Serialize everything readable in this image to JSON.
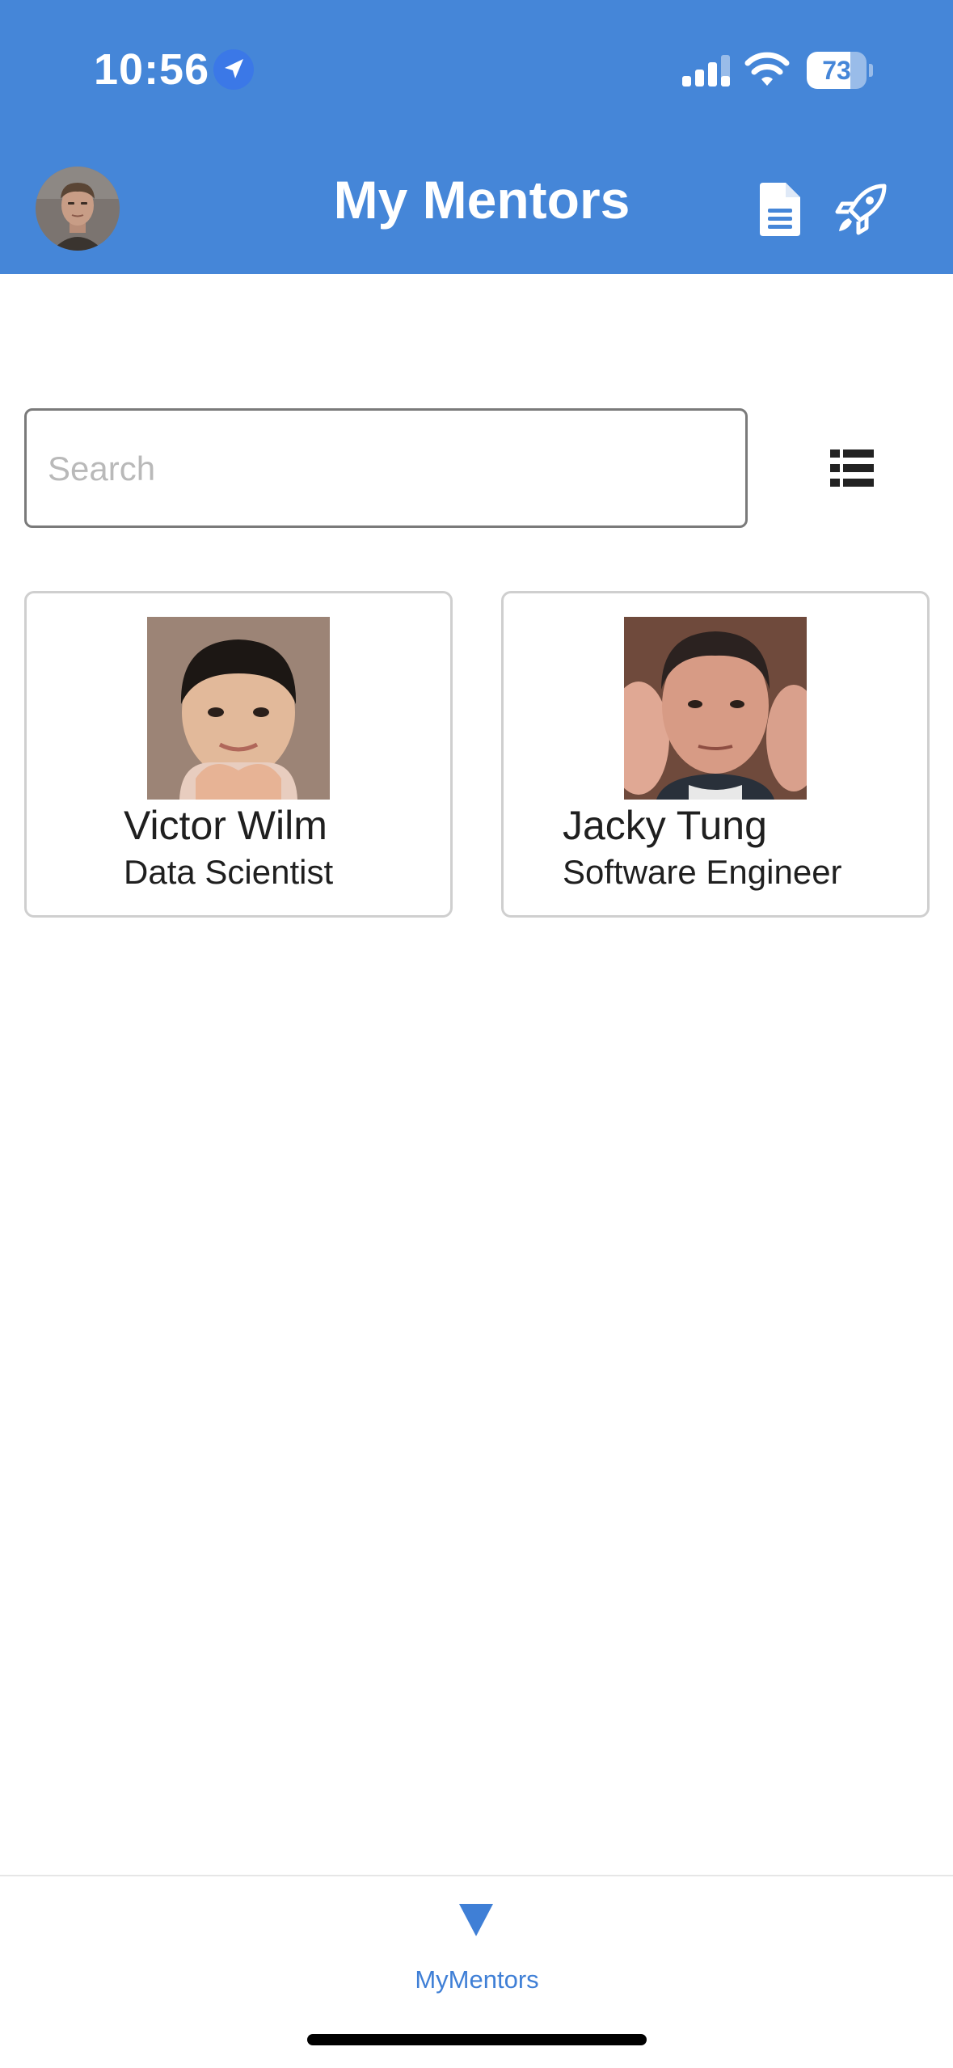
{
  "status_bar": {
    "time": "10:56",
    "battery_percent": 73,
    "battery_level": 0.73,
    "location_icon": "location-arrow-icon",
    "signal_icon": "cellular-signal-icon",
    "wifi_icon": "wifi-icon"
  },
  "header": {
    "title": "My Mentors",
    "avatar_icon": "user-avatar",
    "document_icon": "document-icon",
    "rocket_icon": "rocket-icon",
    "background_color": "#4586d8"
  },
  "search": {
    "placeholder": "Search",
    "value": "",
    "view_toggle_icon": "list-view-icon"
  },
  "mentors": [
    {
      "name": "Victor Wilm",
      "role": "Data Scientist"
    },
    {
      "name": "Jacky Tung",
      "role": "Software Engineer"
    }
  ],
  "tab_bar": {
    "items": [
      {
        "label": "MyMentors",
        "icon": "triangle-down-icon",
        "active": true
      }
    ],
    "active_color": "#3f7fd6"
  }
}
